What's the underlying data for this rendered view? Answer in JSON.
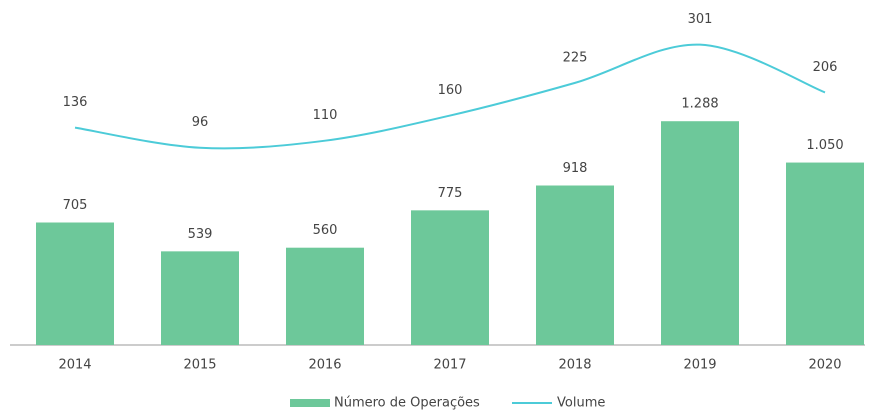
{
  "chart_data": {
    "type": "bar",
    "categories": [
      "2014",
      "2015",
      "2016",
      "2017",
      "2018",
      "2019",
      "2020"
    ],
    "series": [
      {
        "name": "Número de Operações",
        "type": "bar",
        "color": "#6dc89a",
        "values": [
          705,
          539,
          560,
          775,
          918,
          1288,
          1050
        ],
        "value_labels": [
          "705",
          "539",
          "560",
          "775",
          "918",
          "1.288",
          "1.050"
        ]
      },
      {
        "name": "Volume",
        "type": "line",
        "axis": "y2",
        "color": "#4ccbd8",
        "values": [
          136,
          96,
          110,
          160,
          225,
          301,
          206
        ]
      }
    ],
    "ylim": [
      0,
      1600
    ],
    "y2lim": [
      0,
      350
    ],
    "legend": "bottom"
  }
}
